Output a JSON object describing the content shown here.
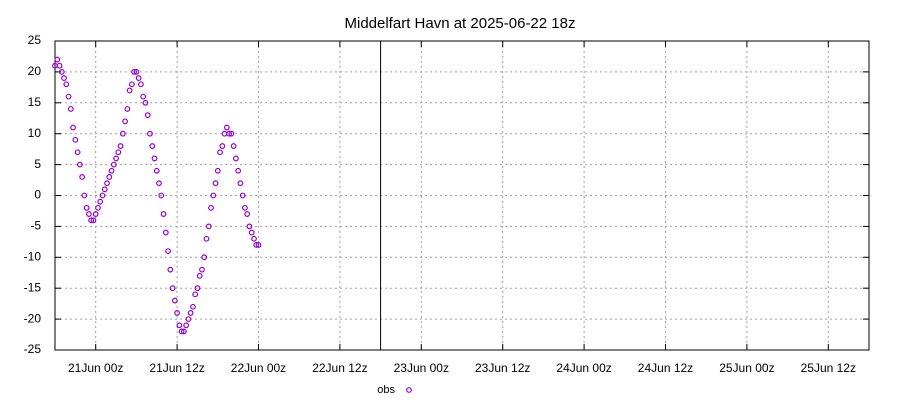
{
  "chart_data": {
    "type": "scatter",
    "title": "Middelfart Havn at 2025-06-22 18z",
    "xlim": [
      "2025-06-20T18:00Z",
      "2025-06-25T18:00Z"
    ],
    "xticks": [
      {
        "value": "2025-06-21T00:00Z",
        "label": "21Jun 00z"
      },
      {
        "value": "2025-06-21T12:00Z",
        "label": "21Jun 12z"
      },
      {
        "value": "2025-06-22T00:00Z",
        "label": "22Jun 00z"
      },
      {
        "value": "2025-06-22T12:00Z",
        "label": "22Jun 12z"
      },
      {
        "value": "2025-06-23T00:00Z",
        "label": "23Jun 00z"
      },
      {
        "value": "2025-06-23T12:00Z",
        "label": "23Jun 12z"
      },
      {
        "value": "2025-06-24T00:00Z",
        "label": "24Jun 00z"
      },
      {
        "value": "2025-06-24T12:00Z",
        "label": "24Jun 12z"
      },
      {
        "value": "2025-06-25T00:00Z",
        "label": "25Jun 00z"
      },
      {
        "value": "2025-06-25T12:00Z",
        "label": "25Jun 12z"
      }
    ],
    "ylim": [
      -25,
      25
    ],
    "yticks": [
      -25,
      -20,
      -15,
      -10,
      -5,
      0,
      5,
      10,
      15,
      20,
      25
    ],
    "grid": true,
    "now_line": "2025-06-22T18:00Z",
    "legend": "bottom",
    "x": [
      "2025-06-20T18:00Z",
      "2025-06-20T18:20Z",
      "2025-06-20T18:40Z",
      "2025-06-20T19:00Z",
      "2025-06-20T19:20Z",
      "2025-06-20T19:40Z",
      "2025-06-20T20:00Z",
      "2025-06-20T20:20Z",
      "2025-06-20T20:40Z",
      "2025-06-20T21:00Z",
      "2025-06-20T21:20Z",
      "2025-06-20T21:40Z",
      "2025-06-20T22:00Z",
      "2025-06-20T22:20Z",
      "2025-06-20T22:40Z",
      "2025-06-20T23:00Z",
      "2025-06-20T23:20Z",
      "2025-06-20T23:40Z",
      "2025-06-21T00:00Z",
      "2025-06-21T00:20Z",
      "2025-06-21T00:40Z",
      "2025-06-21T01:00Z",
      "2025-06-21T01:20Z",
      "2025-06-21T01:40Z",
      "2025-06-21T02:00Z",
      "2025-06-21T02:20Z",
      "2025-06-21T02:40Z",
      "2025-06-21T03:00Z",
      "2025-06-21T03:20Z",
      "2025-06-21T03:40Z",
      "2025-06-21T04:00Z",
      "2025-06-21T04:20Z",
      "2025-06-21T04:40Z",
      "2025-06-21T05:00Z",
      "2025-06-21T05:20Z",
      "2025-06-21T05:40Z",
      "2025-06-21T06:00Z",
      "2025-06-21T06:20Z",
      "2025-06-21T06:40Z",
      "2025-06-21T07:00Z",
      "2025-06-21T07:20Z",
      "2025-06-21T07:40Z",
      "2025-06-21T08:00Z",
      "2025-06-21T08:20Z",
      "2025-06-21T08:40Z",
      "2025-06-21T09:00Z",
      "2025-06-21T09:20Z",
      "2025-06-21T09:40Z",
      "2025-06-21T10:00Z",
      "2025-06-21T10:20Z",
      "2025-06-21T10:40Z",
      "2025-06-21T11:00Z",
      "2025-06-21T11:20Z",
      "2025-06-21T11:40Z",
      "2025-06-21T12:00Z",
      "2025-06-21T12:20Z",
      "2025-06-21T12:40Z",
      "2025-06-21T13:00Z",
      "2025-06-21T13:20Z",
      "2025-06-21T13:40Z",
      "2025-06-21T14:00Z",
      "2025-06-21T14:20Z",
      "2025-06-21T14:40Z",
      "2025-06-21T15:00Z",
      "2025-06-21T15:20Z",
      "2025-06-21T15:40Z",
      "2025-06-21T16:00Z",
      "2025-06-21T16:20Z",
      "2025-06-21T16:40Z",
      "2025-06-21T17:00Z",
      "2025-06-21T17:20Z",
      "2025-06-21T17:40Z",
      "2025-06-21T18:00Z",
      "2025-06-21T18:20Z",
      "2025-06-21T18:40Z",
      "2025-06-21T19:00Z",
      "2025-06-21T19:20Z",
      "2025-06-21T19:40Z",
      "2025-06-21T20:00Z",
      "2025-06-21T20:20Z",
      "2025-06-21T20:40Z",
      "2025-06-21T21:00Z",
      "2025-06-21T21:20Z",
      "2025-06-21T21:40Z",
      "2025-06-21T22:00Z",
      "2025-06-21T22:20Z",
      "2025-06-21T22:40Z",
      "2025-06-21T23:00Z",
      "2025-06-21T23:20Z",
      "2025-06-21T23:40Z",
      "2025-06-22T00:00Z"
    ],
    "series": [
      {
        "name": "obs",
        "color": "#9400d3",
        "values": [
          21,
          22,
          21,
          20,
          19,
          18,
          16,
          14,
          11,
          9,
          7,
          5,
          3,
          0,
          -2,
          -3,
          -4,
          -4,
          -3,
          -2,
          -1,
          0,
          1,
          2,
          3,
          4,
          5,
          6,
          7,
          8,
          10,
          12,
          14,
          17,
          18,
          20,
          20,
          19,
          18,
          16,
          15,
          13,
          10,
          8,
          6,
          4,
          2,
          0,
          -3,
          -6,
          -9,
          -12,
          -15,
          -17,
          -19,
          -21,
          -22,
          -22,
          -21,
          -20,
          -19,
          -18,
          -16,
          -15,
          -13,
          -12,
          -10,
          -7,
          -5,
          -2,
          0,
          2,
          4,
          7,
          8,
          10,
          11,
          10,
          10,
          8,
          6,
          4,
          2,
          0,
          -2,
          -3,
          -5,
          -6,
          -7,
          -8,
          -8
        ]
      }
    ]
  }
}
